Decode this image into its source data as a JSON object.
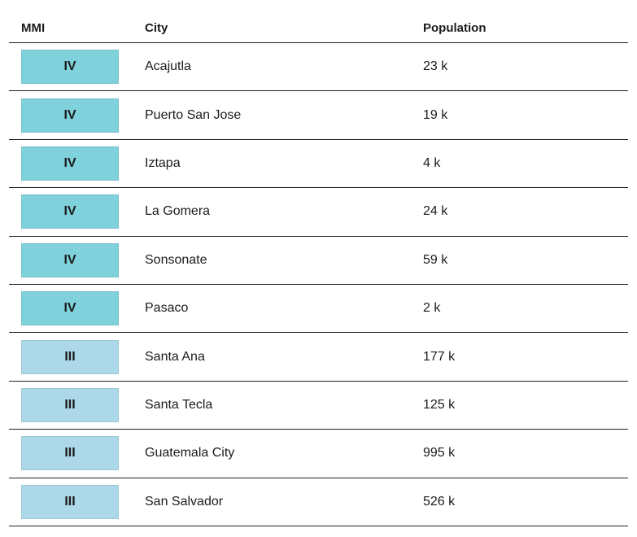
{
  "table": {
    "headers": {
      "mmi": "MMI",
      "city": "City",
      "population": "Population"
    },
    "rows": [
      {
        "mmi": "IV",
        "city": "Acajutla",
        "population": "23 k"
      },
      {
        "mmi": "IV",
        "city": "Puerto San Jose",
        "population": "19 k"
      },
      {
        "mmi": "IV",
        "city": "Iztapa",
        "population": "4 k"
      },
      {
        "mmi": "IV",
        "city": "La Gomera",
        "population": "24 k"
      },
      {
        "mmi": "IV",
        "city": "Sonsonate",
        "population": "59 k"
      },
      {
        "mmi": "IV",
        "city": "Pasaco",
        "population": "2 k"
      },
      {
        "mmi": "III",
        "city": "Santa Ana",
        "population": "177 k"
      },
      {
        "mmi": "III",
        "city": "Santa Tecla",
        "population": "125 k"
      },
      {
        "mmi": "III",
        "city": "Guatemala City",
        "population": "995 k"
      },
      {
        "mmi": "III",
        "city": "San Salvador",
        "population": "526 k"
      }
    ]
  },
  "colors": {
    "mmi_iv": "#7fd1dc",
    "mmi_iii": "#acd8e9",
    "rule": "#222222"
  }
}
